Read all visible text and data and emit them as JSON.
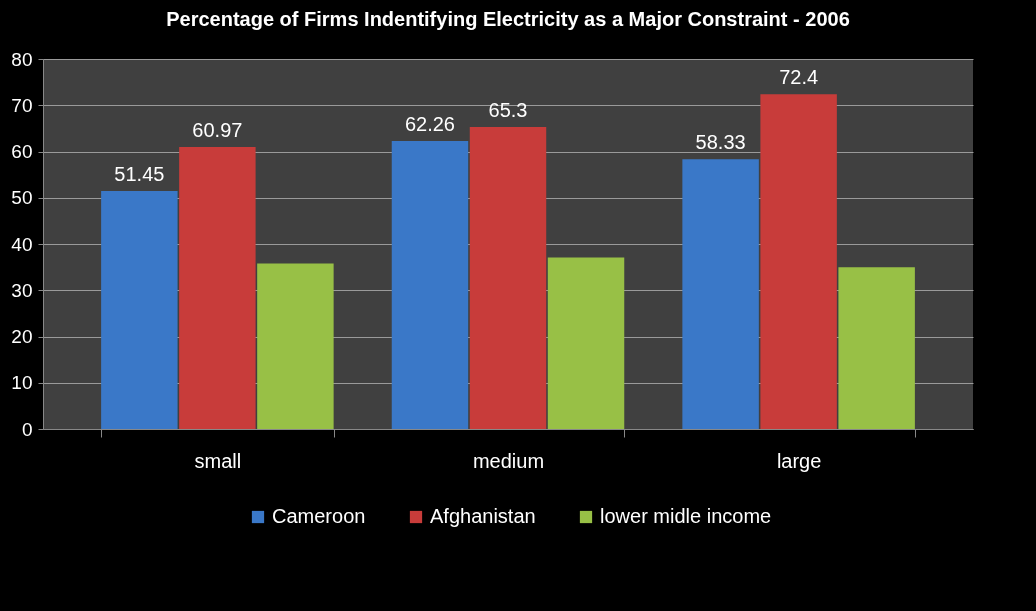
{
  "chart_data": {
    "type": "bar",
    "title": "Percentage of Firms Indentifying Electricity as a Major Constraint - 2006",
    "categories": [
      "small",
      "medium",
      "large"
    ],
    "series": [
      {
        "name": "Cameroon",
        "color": "#3a78c8",
        "values": [
          51.45,
          62.26,
          58.33
        ],
        "value_labels": [
          "51.45",
          "62.26",
          "58.33"
        ]
      },
      {
        "name": "Afghanistan",
        "color": "#c83c3a",
        "values": [
          60.97,
          65.3,
          72.4
        ],
        "value_labels": [
          "60.97",
          "65.3",
          "72.4"
        ]
      },
      {
        "name": "lower midle income",
        "color": "#98c046",
        "values": [
          35.8,
          37.1,
          35.0
        ]
      }
    ],
    "ylim": [
      0,
      80
    ],
    "yticks": [
      0,
      10,
      20,
      30,
      40,
      50,
      60,
      70,
      80
    ],
    "grid": "y",
    "legend": "bottom"
  }
}
